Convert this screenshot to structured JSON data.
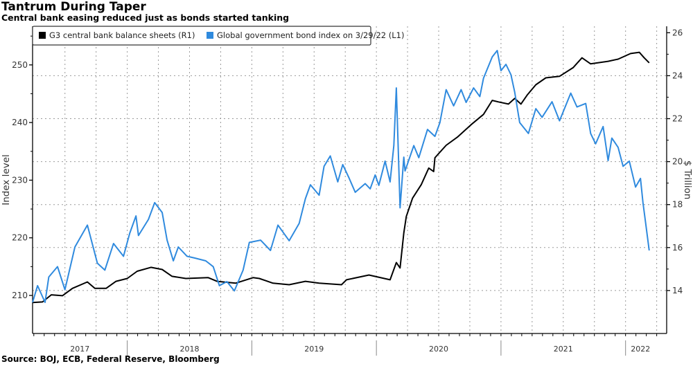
{
  "title": "Tantrum During Taper",
  "subtitle": "Central bank easing reduced just as bonds started tanking",
  "source": "Source: BOJ, ECB, Federal Reserve, Bloomberg",
  "chart_data": {
    "type": "line",
    "title": "Tantrum During Taper",
    "subtitle": "Central bank easing reduced just as bonds started tanking",
    "xlabel": "",
    "ylabel_left": "Index level",
    "ylabel_right": "$ Trillion",
    "xlim": [
      2017.24,
      2022.33
    ],
    "ylim_left": [
      203.4,
      256.7
    ],
    "ylim_right": [
      12.0,
      26.3
    ],
    "left_ticks": [
      210,
      220,
      230,
      240,
      250
    ],
    "right_ticks": [
      14,
      16,
      18,
      20,
      22,
      24,
      26
    ],
    "x_tick_labels": [
      {
        "label": "2017",
        "x": 2017.62
      },
      {
        "label": "2018",
        "x": 2018.5
      },
      {
        "label": "2019",
        "x": 2019.5
      },
      {
        "label": "2020",
        "x": 2020.5
      },
      {
        "label": "2021",
        "x": 2021.5
      },
      {
        "label": "2022",
        "x": 2022.12
      }
    ],
    "year_boundaries": [
      2018,
      2019,
      2020,
      2021,
      2022
    ],
    "grid": true,
    "legend_position": "top-left",
    "colors": {
      "black": "#000000",
      "blue": "#2f8ade"
    },
    "series": [
      {
        "name": "G3 central bank balance sheets (R1)",
        "axis": "right",
        "color": "#000000",
        "x": [
          2017.24,
          2017.32,
          2017.39,
          2017.48,
          2017.56,
          2017.68,
          2017.74,
          2017.83,
          2017.91,
          2018.0,
          2018.08,
          2018.19,
          2018.28,
          2018.36,
          2018.47,
          2018.65,
          2018.72,
          2018.87,
          2019.01,
          2019.06,
          2019.17,
          2019.3,
          2019.43,
          2019.54,
          2019.72,
          2019.76,
          2019.94,
          2020.11,
          2020.16,
          2020.19,
          2020.22,
          2020.24,
          2020.29,
          2020.36,
          2020.42,
          2020.46,
          2020.47,
          2020.56,
          2020.65,
          2020.76,
          2020.86,
          2020.93,
          2020.98,
          2021.06,
          2021.11,
          2021.16,
          2021.21,
          2021.28,
          2021.36,
          2021.47,
          2021.58,
          2021.65,
          2021.72,
          2021.86,
          2021.94,
          2022.04,
          2022.11,
          2022.15,
          2022.19
        ],
        "values": [
          13.44,
          13.47,
          13.8,
          13.76,
          14.1,
          14.4,
          14.1,
          14.1,
          14.43,
          14.56,
          14.9,
          15.08,
          14.98,
          14.66,
          14.56,
          14.6,
          14.43,
          14.34,
          14.6,
          14.56,
          14.34,
          14.27,
          14.43,
          14.34,
          14.27,
          14.5,
          14.72,
          14.5,
          15.3,
          15.05,
          16.68,
          17.45,
          18.3,
          18.93,
          19.7,
          19.54,
          20.18,
          20.76,
          21.14,
          21.72,
          22.2,
          22.85,
          22.78,
          22.68,
          22.94,
          22.68,
          23.1,
          23.58,
          23.9,
          23.97,
          24.38,
          24.83,
          24.55,
          24.67,
          24.77,
          25.03,
          25.09,
          24.83,
          24.6
        ]
      },
      {
        "name": "Global government bond index on 3/29/22 (L1)",
        "axis": "left",
        "color": "#2f8ade",
        "x": [
          2017.24,
          2017.28,
          2017.34,
          2017.37,
          2017.44,
          2017.5,
          2017.58,
          2017.68,
          2017.76,
          2017.82,
          2017.89,
          2017.97,
          2018.02,
          2018.07,
          2018.09,
          2018.17,
          2018.22,
          2018.28,
          2018.32,
          2018.37,
          2018.41,
          2018.48,
          2018.54,
          2018.63,
          2018.69,
          2018.74,
          2018.8,
          2018.86,
          2018.93,
          2018.98,
          2019.07,
          2019.15,
          2019.21,
          2019.3,
          2019.38,
          2019.43,
          2019.47,
          2019.54,
          2019.58,
          2019.63,
          2019.69,
          2019.73,
          2019.78,
          2019.83,
          2019.91,
          2019.95,
          2019.99,
          2020.02,
          2020.07,
          2020.11,
          2020.14,
          2020.16,
          2020.19,
          2020.22,
          2020.23,
          2020.3,
          2020.34,
          2020.41,
          2020.47,
          2020.51,
          2020.56,
          2020.62,
          2020.68,
          2020.72,
          2020.78,
          2020.83,
          2020.86,
          2020.93,
          2020.97,
          2021.0,
          2021.04,
          2021.08,
          2021.11,
          2021.15,
          2021.22,
          2021.28,
          2021.33,
          2021.41,
          2021.47,
          2021.56,
          2021.61,
          2021.68,
          2021.72,
          2021.76,
          2021.82,
          2021.86,
          2021.89,
          2021.94,
          2021.98,
          2022.03,
          2022.08,
          2022.12,
          2022.14,
          2022.16,
          2022.19
        ],
        "values": [
          208.8,
          211.7,
          208.8,
          213.2,
          215,
          211,
          218.4,
          222.2,
          215.6,
          214.4,
          219,
          216.8,
          220.8,
          223.8,
          220.4,
          223.2,
          226.1,
          224.4,
          219.6,
          216,
          218.4,
          216.8,
          216.5,
          216,
          215,
          211.7,
          212.4,
          210.8,
          214.4,
          219.2,
          219.6,
          217.8,
          222.2,
          219.5,
          222.5,
          226.8,
          229.2,
          227.4,
          232.4,
          234.2,
          229.7,
          232.7,
          230.4,
          227.9,
          229.4,
          228.5,
          230.9,
          229.1,
          233.3,
          229.7,
          236,
          246,
          225.2,
          234,
          231.6,
          236,
          233.9,
          238.8,
          237.6,
          240,
          245.7,
          242.9,
          245.7,
          243.5,
          246,
          244.5,
          247.7,
          251.4,
          252.5,
          249,
          250.1,
          248.3,
          245.3,
          240,
          238.1,
          242.4,
          240.9,
          243.6,
          240.3,
          245.1,
          242.7,
          243.3,
          238.1,
          236.3,
          239.3,
          233.4,
          237.3,
          235.7,
          232.4,
          233.3,
          228.8,
          230.3,
          226.1,
          222.8,
          217.8
        ]
      }
    ]
  }
}
